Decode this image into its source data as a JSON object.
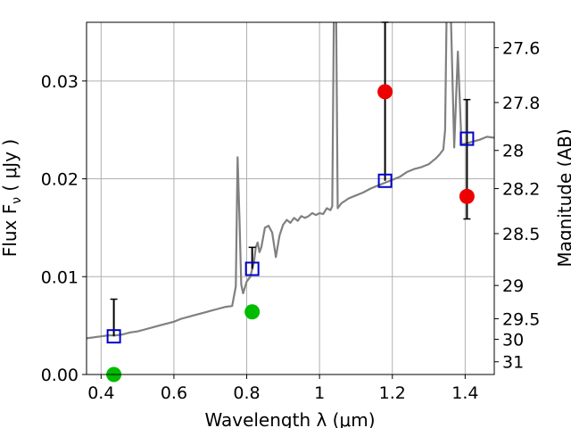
{
  "chart_data": {
    "type": "scatter",
    "xlabel": "Wavelength  λ (μm)",
    "ylabel": "Flux  F",
    "ylabel_sub": "ν",
    "ylabel_unit": "  ( μJy )",
    "y2label": "Magnitude (AB)",
    "xlim": [
      0.36,
      1.48
    ],
    "ylim": [
      0.0,
      0.036
    ],
    "grid": true,
    "x_ticks": [
      0.4,
      0.6,
      0.8,
      1.0,
      1.2,
      1.4
    ],
    "x_tick_labels": [
      "0.4",
      "0.6",
      "0.8",
      "1",
      "1.2",
      "1.4"
    ],
    "y_ticks": [
      0.0,
      0.01,
      0.02,
      0.03
    ],
    "y_tick_labels": [
      "0.00",
      "0.01",
      "0.02",
      "0.03"
    ],
    "y2_ticks": [
      {
        "label": "27.6",
        "flux": 0.0334
      },
      {
        "label": "27.8",
        "flux": 0.0278
      },
      {
        "label": "28",
        "flux": 0.0229
      },
      {
        "label": "28.2",
        "flux": 0.019
      },
      {
        "label": "28.5",
        "flux": 0.0144
      },
      {
        "label": "29",
        "flux": 0.0091
      },
      {
        "label": "29.5",
        "flux": 0.0057
      },
      {
        "label": "30",
        "flux": 0.0036
      },
      {
        "label": "31",
        "flux": 0.0013
      }
    ],
    "series": [
      {
        "style": "line",
        "color": "#808080",
        "x": [
          0.36,
          0.38,
          0.4,
          0.42,
          0.44,
          0.46,
          0.48,
          0.5,
          0.52,
          0.54,
          0.56,
          0.58,
          0.6,
          0.62,
          0.64,
          0.66,
          0.68,
          0.7,
          0.72,
          0.74,
          0.76,
          0.77,
          0.775,
          0.78,
          0.785,
          0.79,
          0.8,
          0.81,
          0.82,
          0.825,
          0.83,
          0.835,
          0.84,
          0.85,
          0.86,
          0.87,
          0.88,
          0.89,
          0.9,
          0.91,
          0.92,
          0.93,
          0.94,
          0.95,
          0.96,
          0.97,
          0.98,
          0.99,
          1.0,
          1.01,
          1.02,
          1.03,
          1.035,
          1.04,
          1.045,
          1.05,
          1.06,
          1.08,
          1.1,
          1.12,
          1.14,
          1.16,
          1.18,
          1.2,
          1.22,
          1.24,
          1.26,
          1.28,
          1.3,
          1.31,
          1.32,
          1.33,
          1.34,
          1.345,
          1.35,
          1.36,
          1.37,
          1.38,
          1.39,
          1.4,
          1.42,
          1.44,
          1.46,
          1.48
        ],
        "y": [
          0.0037,
          0.0038,
          0.0039,
          0.004,
          0.004,
          0.0041,
          0.0043,
          0.0044,
          0.0046,
          0.0048,
          0.005,
          0.0052,
          0.0054,
          0.0057,
          0.0059,
          0.0061,
          0.0063,
          0.0065,
          0.0067,
          0.0069,
          0.007,
          0.009,
          0.0222,
          0.016,
          0.0092,
          0.0083,
          0.0095,
          0.01,
          0.0115,
          0.013,
          0.0135,
          0.0125,
          0.013,
          0.015,
          0.0152,
          0.0145,
          0.012,
          0.0142,
          0.0153,
          0.0158,
          0.0155,
          0.016,
          0.0157,
          0.0162,
          0.016,
          0.0162,
          0.0165,
          0.0163,
          0.0165,
          0.0164,
          0.017,
          0.0168,
          0.0172,
          0.04,
          0.04,
          0.017,
          0.0175,
          0.018,
          0.0183,
          0.0186,
          0.019,
          0.0193,
          0.0196,
          0.0199,
          0.0202,
          0.0207,
          0.021,
          0.0212,
          0.0215,
          0.0218,
          0.0221,
          0.0225,
          0.023,
          0.025,
          0.04,
          0.038,
          0.0232,
          0.033,
          0.0235,
          0.0236,
          0.0238,
          0.024,
          0.0243,
          0.0242
        ]
      },
      {
        "style": "open-square",
        "color": "#0000cc",
        "x": [
          0.435,
          0.815,
          1.18,
          1.405
        ],
        "y": [
          0.0039,
          0.0108,
          0.0198,
          0.0241
        ],
        "err_low": [
          0.0039,
          0.0108,
          0.0198,
          0.0159
        ],
        "err_high": [
          0.0077,
          0.013,
          0.036,
          0.0281
        ]
      },
      {
        "style": "filled-circle",
        "color": "#00bb00",
        "x": [
          0.435,
          0.815
        ],
        "y": [
          0.0,
          0.0064
        ]
      },
      {
        "style": "filled-circle",
        "color": "#ee0000",
        "x": [
          1.18,
          1.405
        ],
        "y": [
          0.0289,
          0.0182
        ]
      }
    ]
  }
}
